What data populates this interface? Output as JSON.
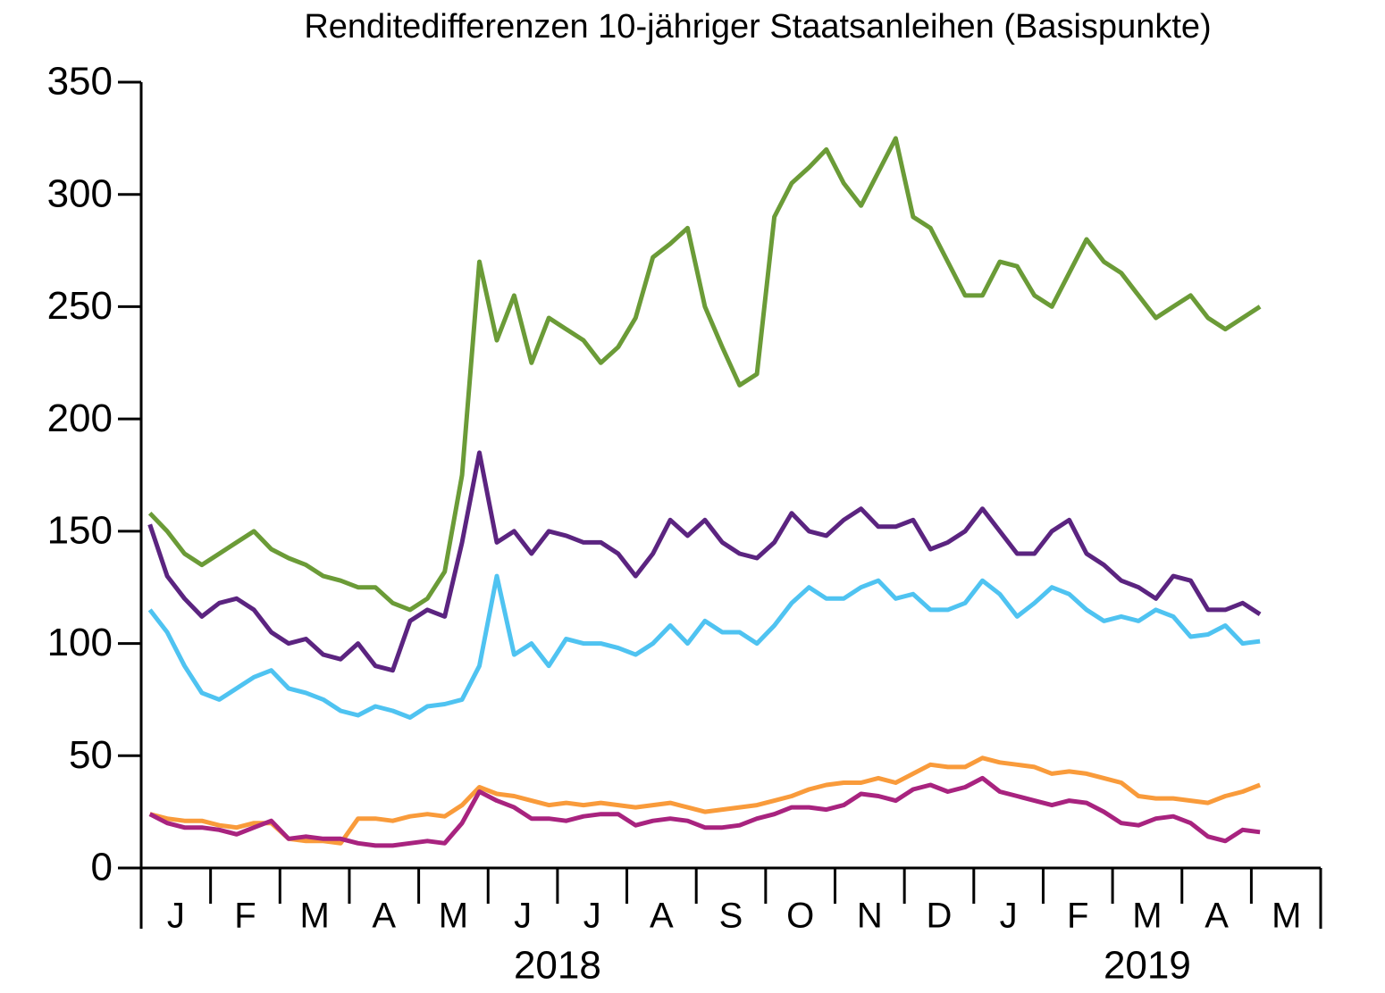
{
  "chart_data": {
    "type": "line",
    "title": "Renditedifferenzen 10-jähriger Staatsanleihen (Basispunkte)",
    "categories": [
      null,
      "J",
      null,
      null,
      null,
      "F",
      null,
      null,
      null,
      "M",
      null,
      null,
      null,
      "A",
      null,
      null,
      null,
      "M",
      null,
      null,
      null,
      "J",
      null,
      null,
      null,
      "J",
      null,
      null,
      null,
      "A",
      null,
      null,
      null,
      "S",
      null,
      null,
      null,
      "O",
      null,
      null,
      null,
      "N",
      null,
      null,
      null,
      "D",
      null,
      null,
      null,
      "J",
      null,
      null,
      null,
      "F",
      null,
      null,
      null,
      "M",
      null,
      null,
      null,
      "A",
      null,
      null,
      "M"
    ],
    "year_labels": [
      "2018",
      "2019"
    ],
    "series": [
      {
        "color": "#6b9b37",
        "values": [
          158,
          150,
          140,
          135,
          140,
          145,
          150,
          142,
          138,
          135,
          130,
          128,
          125,
          125,
          118,
          115,
          120,
          132,
          175,
          270,
          235,
          255,
          225,
          245,
          240,
          235,
          225,
          232,
          245,
          272,
          278,
          285,
          250,
          232,
          215,
          220,
          290,
          305,
          312,
          320,
          305,
          295,
          310,
          325,
          290,
          285,
          270,
          255,
          255,
          270,
          268,
          255,
          250,
          265,
          280,
          270,
          265,
          255,
          245,
          250,
          255,
          245,
          240,
          245,
          250
        ]
      },
      {
        "color": "#5b2480",
        "values": [
          153,
          130,
          120,
          112,
          118,
          120,
          115,
          105,
          100,
          102,
          95,
          93,
          100,
          90,
          88,
          110,
          115,
          112,
          145,
          185,
          145,
          150,
          140,
          150,
          148,
          145,
          145,
          140,
          130,
          140,
          155,
          148,
          155,
          145,
          140,
          138,
          145,
          158,
          150,
          148,
          155,
          160,
          152,
          152,
          155,
          142,
          145,
          150,
          160,
          150,
          140,
          140,
          150,
          155,
          140,
          135,
          128,
          125,
          120,
          130,
          128,
          115,
          115,
          118,
          113
        ]
      },
      {
        "color": "#4fc3f1",
        "values": [
          115,
          105,
          90,
          78,
          75,
          80,
          85,
          88,
          80,
          78,
          75,
          70,
          68,
          72,
          70,
          67,
          72,
          73,
          75,
          90,
          130,
          95,
          100,
          90,
          102,
          100,
          100,
          98,
          95,
          100,
          108,
          100,
          110,
          105,
          105,
          100,
          108,
          118,
          125,
          120,
          120,
          125,
          128,
          120,
          122,
          115,
          115,
          118,
          128,
          122,
          112,
          118,
          125,
          122,
          115,
          110,
          112,
          110,
          115,
          112,
          103,
          104,
          108,
          100,
          101
        ]
      },
      {
        "color": "#f99b3b",
        "values": [
          24,
          22,
          21,
          21,
          19,
          18,
          20,
          20,
          13,
          12,
          12,
          11,
          22,
          22,
          21,
          23,
          24,
          23,
          28,
          36,
          33,
          32,
          30,
          28,
          29,
          28,
          29,
          28,
          27,
          28,
          29,
          27,
          25,
          26,
          27,
          28,
          30,
          32,
          35,
          37,
          38,
          38,
          40,
          38,
          42,
          46,
          45,
          45,
          49,
          47,
          46,
          45,
          42,
          43,
          42,
          40,
          38,
          32,
          31,
          31,
          30,
          29,
          32,
          34,
          37
        ]
      },
      {
        "color": "#a8237f",
        "values": [
          24,
          20,
          18,
          18,
          17,
          15,
          18,
          21,
          13,
          14,
          13,
          13,
          11,
          10,
          10,
          11,
          12,
          11,
          20,
          34,
          30,
          27,
          22,
          22,
          21,
          23,
          24,
          24,
          19,
          21,
          22,
          21,
          18,
          18,
          19,
          22,
          24,
          27,
          27,
          26,
          28,
          33,
          32,
          30,
          35,
          37,
          34,
          36,
          40,
          34,
          32,
          30,
          28,
          30,
          29,
          25,
          20,
          19,
          22,
          23,
          20,
          14,
          12,
          17,
          16
        ]
      }
    ],
    "ylim": [
      0,
      350
    ],
    "yticks": [
      0,
      50,
      100,
      150,
      200,
      250,
      300,
      350
    ]
  }
}
